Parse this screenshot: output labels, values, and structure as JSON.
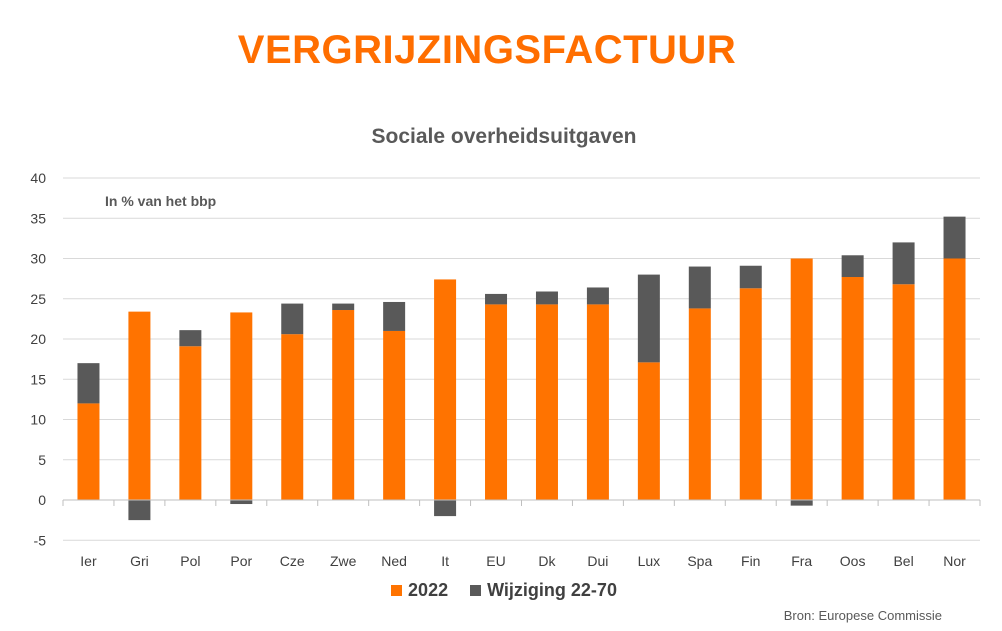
{
  "page": {
    "title": "VERGRIJZINGSFACTUUR",
    "source": "Bron: Europese Commissie"
  },
  "chart_data": {
    "type": "bar",
    "stacked": true,
    "title": "Sociale overheidsuitgaven",
    "note": "In % van het bbp",
    "xlabel": "",
    "ylabel": "",
    "ylim": [
      -5,
      40
    ],
    "yticks": [
      -5,
      0,
      5,
      10,
      15,
      20,
      25,
      30,
      35,
      40
    ],
    "grid": true,
    "legend_position": "bottom",
    "categories": [
      "Ier",
      "Gri",
      "Pol",
      "Por",
      "Cze",
      "Zwe",
      "Ned",
      "It",
      "EU",
      "Dk",
      "Dui",
      "Lux",
      "Spa",
      "Fin",
      "Fra",
      "Oos",
      "Bel",
      "Nor"
    ],
    "series": [
      {
        "name": "2022",
        "color": "#ff7300",
        "values": [
          12.0,
          23.4,
          19.1,
          23.3,
          20.6,
          23.6,
          21.0,
          27.4,
          24.3,
          24.3,
          24.3,
          17.1,
          23.8,
          26.3,
          30.0,
          27.7,
          26.8,
          30.0
        ]
      },
      {
        "name": "Wijziging 22-70",
        "color": "#595959",
        "values": [
          5.0,
          -2.5,
          2.0,
          -0.5,
          3.8,
          0.8,
          3.6,
          -2.0,
          1.3,
          1.6,
          2.1,
          10.9,
          5.2,
          2.8,
          -0.7,
          2.7,
          5.2,
          5.2
        ]
      }
    ]
  }
}
